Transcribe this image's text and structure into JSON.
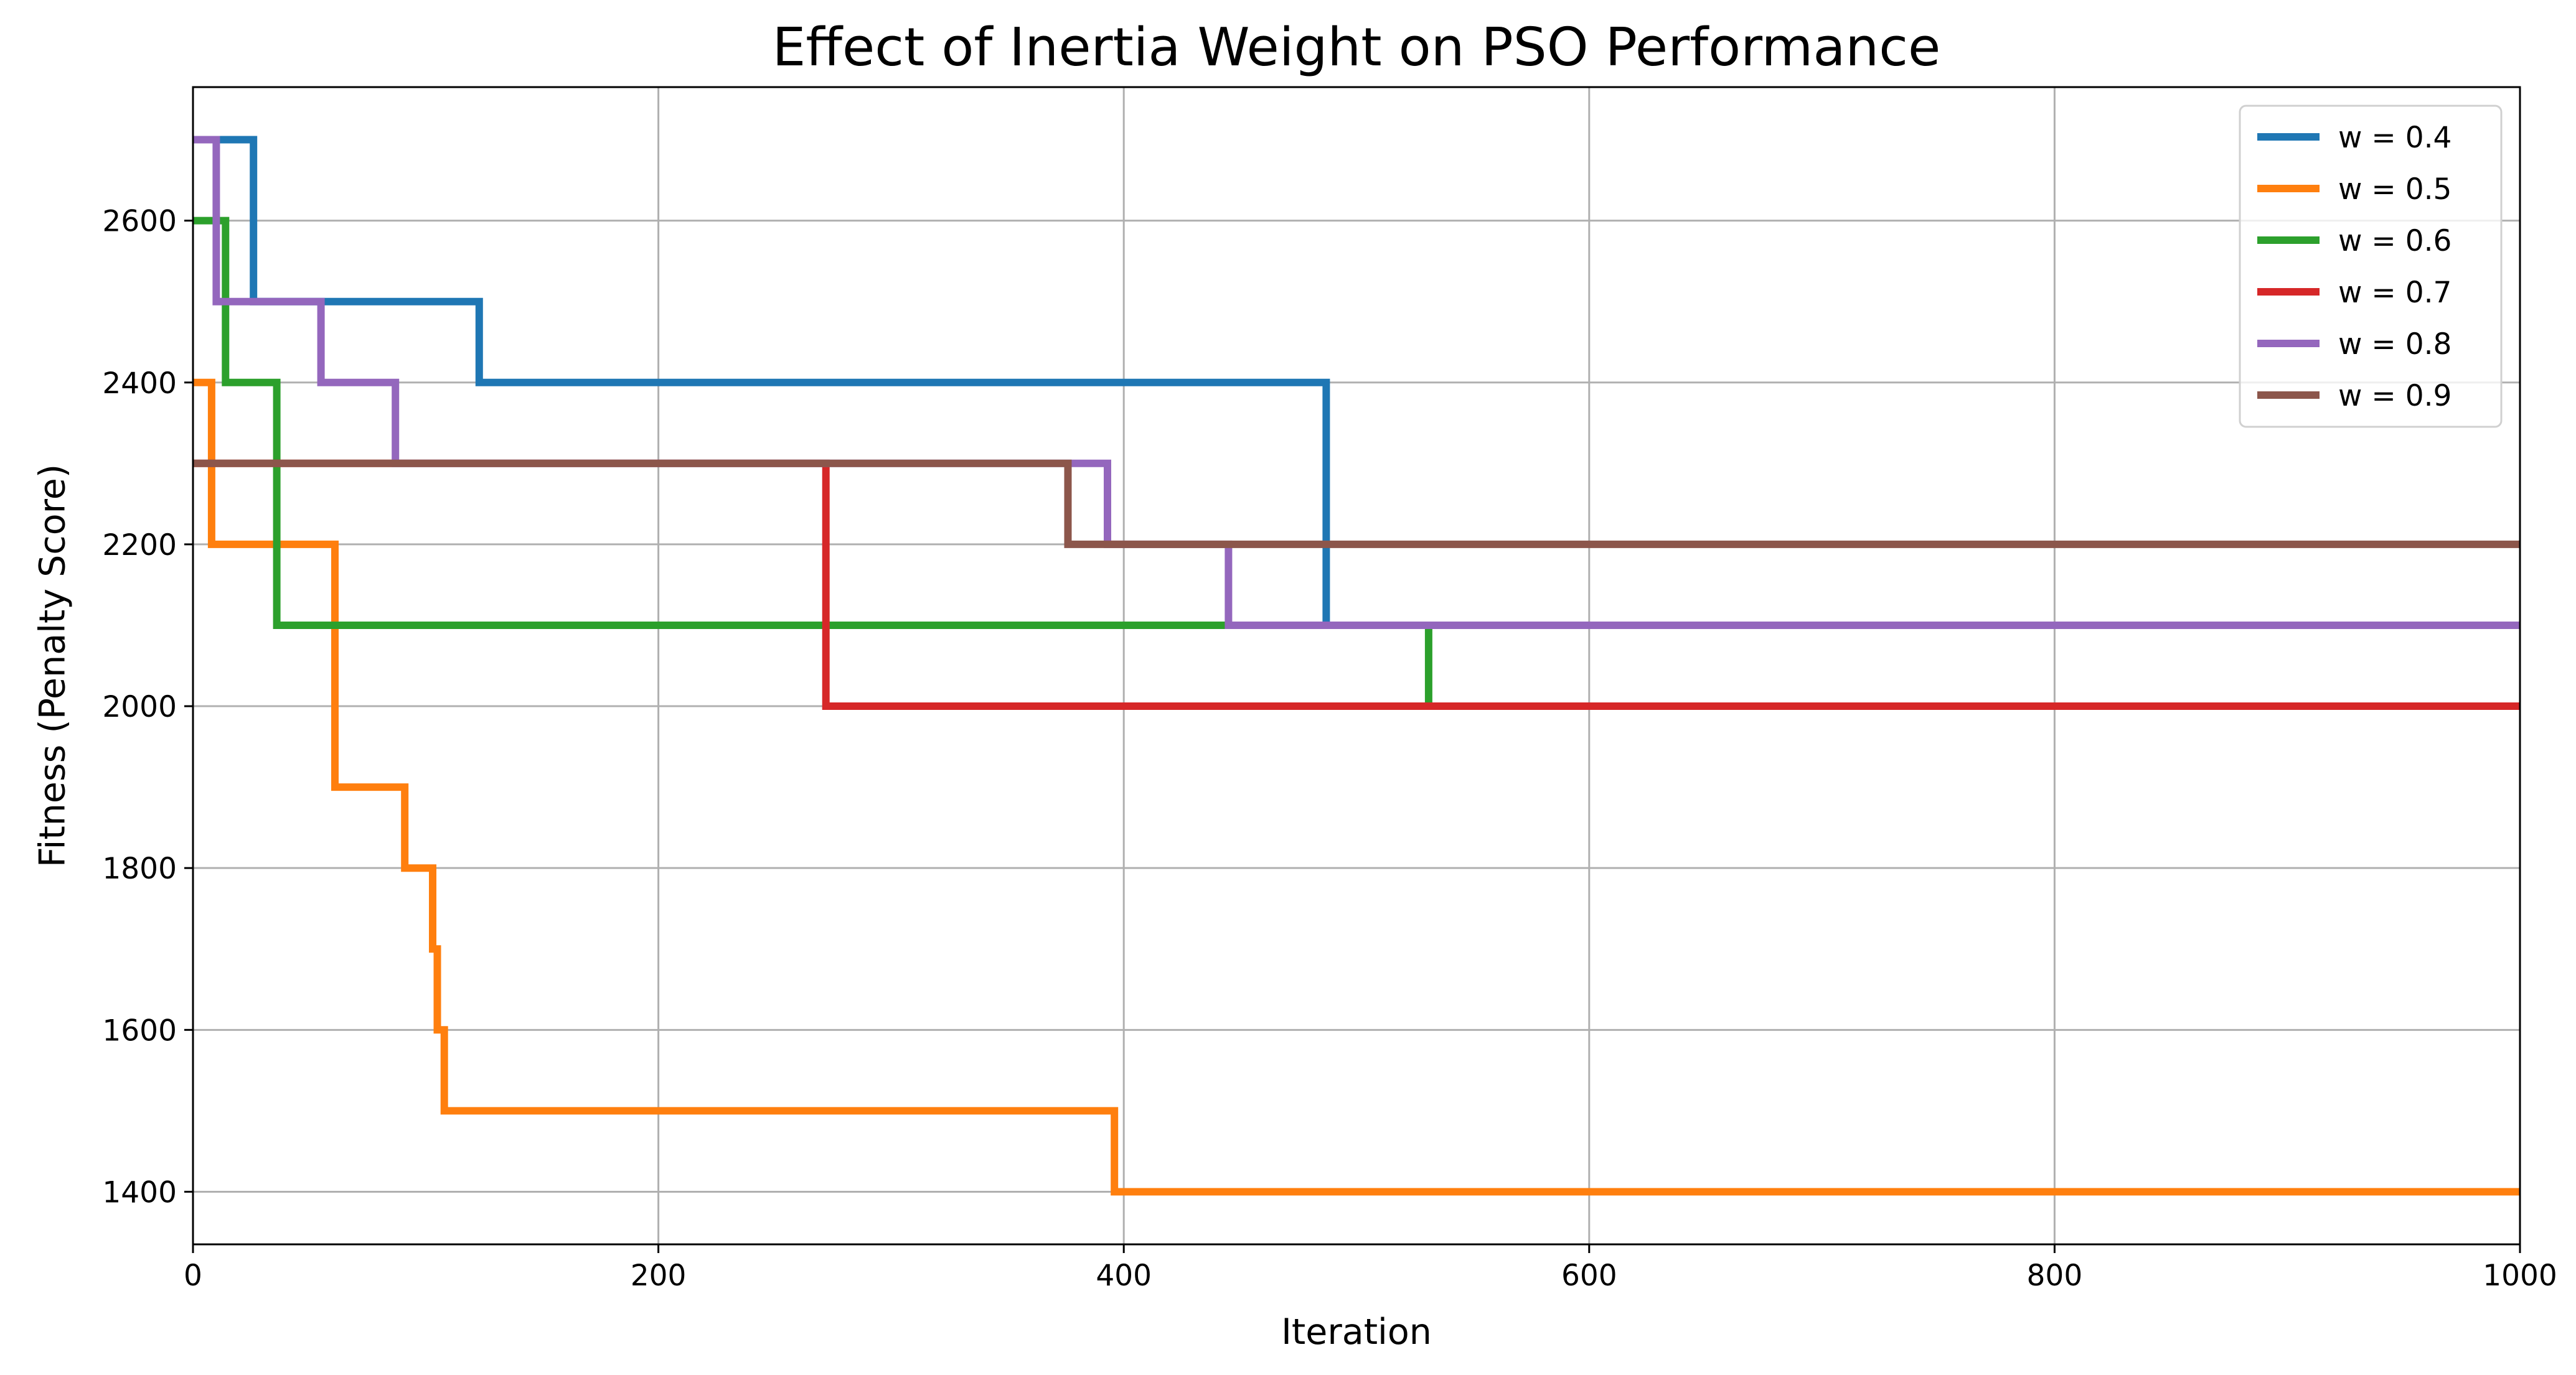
{
  "chart_data": {
    "type": "line",
    "title": "Effect of Inertia Weight on PSO Performance",
    "xlabel": "Iteration",
    "ylabel": "Fitness (Penalty Score)",
    "xlim": [
      0,
      1000
    ],
    "ylim": [
      1335,
      2765
    ],
    "xticks": [
      0,
      200,
      400,
      600,
      800,
      1000
    ],
    "yticks": [
      1400,
      1600,
      1800,
      2000,
      2200,
      2400,
      2600
    ],
    "grid": true,
    "legend_position": "top-right",
    "step": "post",
    "series": [
      {
        "name": "w = 0.4",
        "color": "#1f77b4",
        "points": [
          [
            0,
            2700
          ],
          [
            25,
            2700
          ],
          [
            26,
            2500
          ],
          [
            122,
            2500
          ],
          [
            123,
            2400
          ],
          [
            485,
            2400
          ],
          [
            487,
            2100
          ],
          [
            1000,
            2100
          ]
        ]
      },
      {
        "name": "w = 0.5",
        "color": "#ff7f0e",
        "points": [
          [
            0,
            2400
          ],
          [
            6,
            2400
          ],
          [
            8,
            2200
          ],
          [
            57,
            2200
          ],
          [
            61,
            1900
          ],
          [
            90,
            1900
          ],
          [
            91,
            1800
          ],
          [
            102,
            1800
          ],
          [
            103,
            1700
          ],
          [
            104,
            1700
          ],
          [
            105,
            1600
          ],
          [
            107,
            1600
          ],
          [
            108,
            1500
          ],
          [
            395,
            1500
          ],
          [
            396,
            1400
          ],
          [
            1000,
            1400
          ]
        ]
      },
      {
        "name": "w = 0.6",
        "color": "#2ca02c",
        "points": [
          [
            0,
            2600
          ],
          [
            12,
            2600
          ],
          [
            14,
            2400
          ],
          [
            34,
            2400
          ],
          [
            36,
            2100
          ],
          [
            530,
            2100
          ],
          [
            531,
            2000
          ],
          [
            1000,
            2000
          ]
        ]
      },
      {
        "name": "w = 0.7",
        "color": "#d62728",
        "points": [
          [
            0,
            2300
          ],
          [
            270,
            2300
          ],
          [
            272,
            2000
          ],
          [
            1000,
            2000
          ]
        ]
      },
      {
        "name": "w = 0.8",
        "color": "#9467bd",
        "points": [
          [
            0,
            2700
          ],
          [
            8,
            2700
          ],
          [
            10,
            2500
          ],
          [
            53,
            2500
          ],
          [
            55,
            2400
          ],
          [
            86,
            2400
          ],
          [
            87,
            2300
          ],
          [
            392,
            2300
          ],
          [
            393,
            2200
          ],
          [
            443,
            2200
          ],
          [
            445,
            2100
          ],
          [
            1000,
            2100
          ]
        ]
      },
      {
        "name": "w = 0.9",
        "color": "#8c564b",
        "points": [
          [
            0,
            2300
          ],
          [
            374,
            2300
          ],
          [
            376,
            2200
          ],
          [
            1000,
            2200
          ]
        ]
      }
    ]
  }
}
